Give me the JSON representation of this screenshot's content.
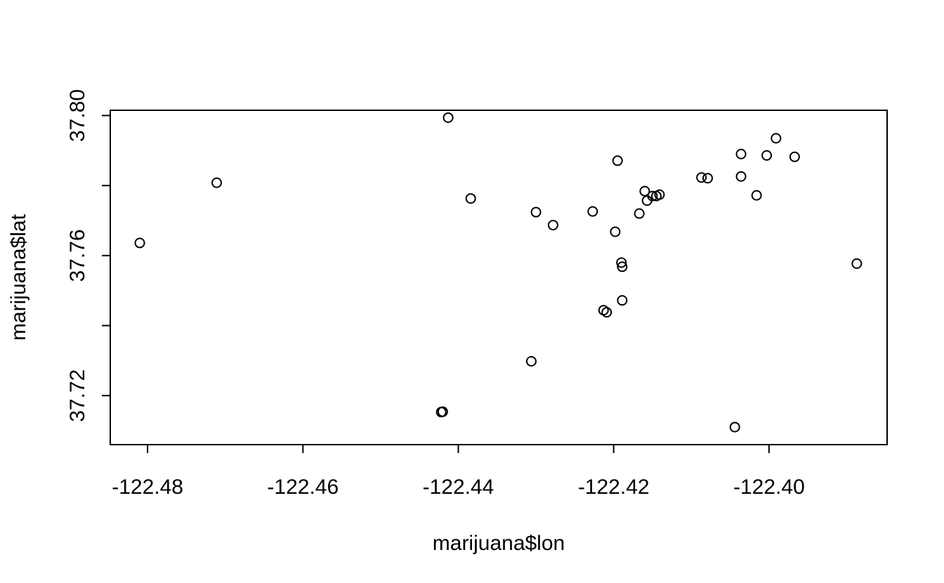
{
  "chart_data": {
    "type": "scatter",
    "title": "",
    "xlabel": "marijuana$lon",
    "ylabel": "marijuana$lat",
    "xlim": [
      -122.4848,
      -122.3848
    ],
    "ylim": [
      37.706,
      37.8015
    ],
    "x_ticks": [
      -122.48,
      -122.46,
      -122.44,
      -122.42,
      -122.4
    ],
    "x_tick_labels": [
      "-122.48",
      "-122.46",
      "-122.44",
      "-122.42",
      "-122.40"
    ],
    "y_ticks": [
      37.72,
      37.74,
      37.76,
      37.78,
      37.8
    ],
    "y_tick_labels": [
      "37.72",
      "",
      "37.76",
      "",
      "37.80"
    ],
    "grid": false,
    "legend": "none",
    "marker": "open-circle",
    "points": [
      {
        "x": -122.481,
        "y": 37.7636
      },
      {
        "x": -122.4711,
        "y": 37.7808
      },
      {
        "x": -122.4413,
        "y": 37.7994
      },
      {
        "x": -122.4384,
        "y": 37.7763
      },
      {
        "x": -122.43,
        "y": 37.7724
      },
      {
        "x": -122.4278,
        "y": 37.7687
      },
      {
        "x": -122.4306,
        "y": 37.7298
      },
      {
        "x": -122.4422,
        "y": 37.7153
      },
      {
        "x": -122.442,
        "y": 37.7154
      },
      {
        "x": -122.4227,
        "y": 37.7726
      },
      {
        "x": -122.4198,
        "y": 37.7668
      },
      {
        "x": -122.4195,
        "y": 37.7871
      },
      {
        "x": -122.419,
        "y": 37.758
      },
      {
        "x": -122.4189,
        "y": 37.7568
      },
      {
        "x": -122.4189,
        "y": 37.7472
      },
      {
        "x": -122.4213,
        "y": 37.7444
      },
      {
        "x": -122.4209,
        "y": 37.7438
      },
      {
        "x": -122.4167,
        "y": 37.772
      },
      {
        "x": -122.416,
        "y": 37.7784
      },
      {
        "x": -122.4157,
        "y": 37.7757
      },
      {
        "x": -122.415,
        "y": 37.777
      },
      {
        "x": -122.4145,
        "y": 37.777
      },
      {
        "x": -122.4141,
        "y": 37.7774
      },
      {
        "x": -122.4087,
        "y": 37.7823
      },
      {
        "x": -122.4079,
        "y": 37.7821
      },
      {
        "x": -122.4036,
        "y": 37.789
      },
      {
        "x": -122.4036,
        "y": 37.7826
      },
      {
        "x": -122.4016,
        "y": 37.7772
      },
      {
        "x": -122.4003,
        "y": 37.7886
      },
      {
        "x": -122.3991,
        "y": 37.7935
      },
      {
        "x": -122.3967,
        "y": 37.7882
      },
      {
        "x": -122.3887,
        "y": 37.7577
      },
      {
        "x": -122.4044,
        "y": 37.711
      }
    ]
  }
}
